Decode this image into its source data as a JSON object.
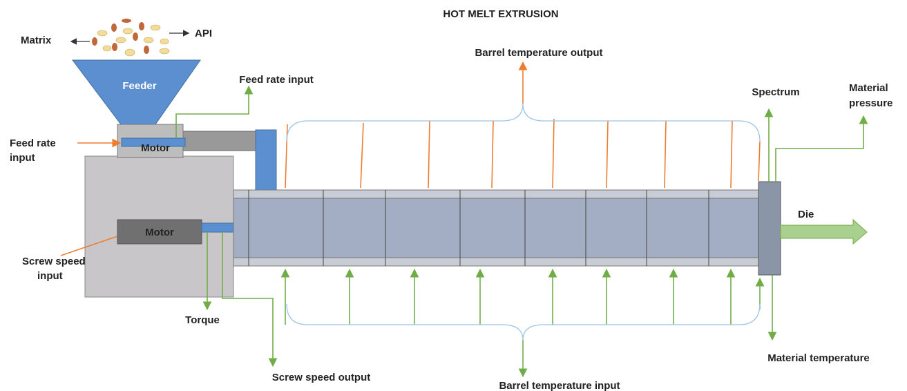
{
  "title": "HOT MELT EXTRUSION",
  "labels": {
    "matrix": "Matrix",
    "api": "API",
    "feeder": "Feeder",
    "feed_rate_input_top": "Feed rate input",
    "feed_rate_input_left": {
      "lines": [
        "Feed rate",
        "input"
      ]
    },
    "feeder_motor": "Motor",
    "screw_motor": "Motor",
    "screw_speed_input": {
      "lines": [
        "Screw speed",
        "input"
      ]
    },
    "torque": "Torque",
    "screw_speed_output": "Screw speed output",
    "barrel_temperature_output": "Barrel temperature output",
    "barrel_temperature_input": "Barrel temperature input",
    "spectrum": "Spectrum",
    "material_pressure": {
      "lines": [
        "Material",
        "pressure"
      ]
    },
    "die": "Die",
    "material_temperature": "Material temperature"
  }
}
